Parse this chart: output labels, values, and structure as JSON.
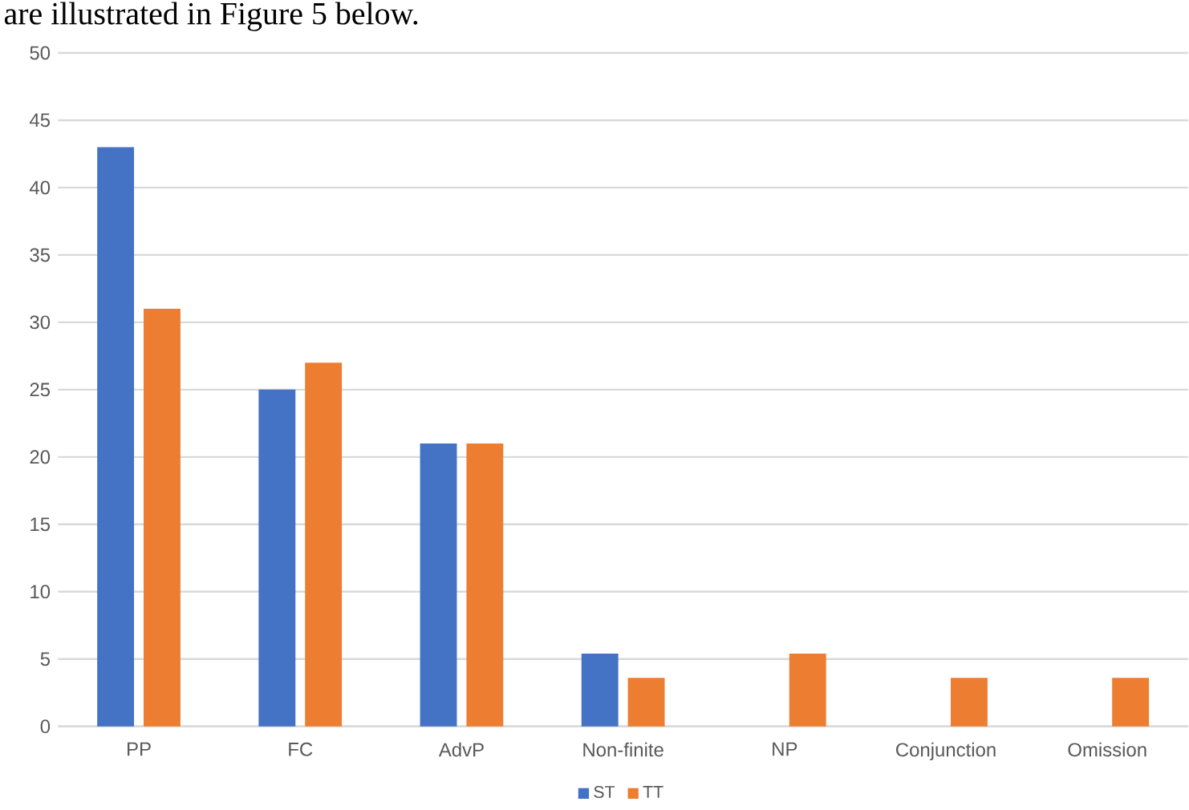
{
  "chart_data": {
    "type": "bar",
    "annotations": [
      "are illustrated in Figure 5 below."
    ],
    "categories": [
      "PP",
      "FC",
      "AdvP",
      "Non-finite",
      "NP",
      "Conjunction",
      "Omission"
    ],
    "series": [
      {
        "name": "ST",
        "color": "#4472c4",
        "values": [
          43,
          25,
          21,
          5.4,
          0,
          0,
          0
        ]
      },
      {
        "name": "TT",
        "color": "#ed7d31",
        "values": [
          31,
          27,
          21,
          3.6,
          5.4,
          3.6,
          3.6
        ]
      }
    ],
    "ylim": [
      0,
      50
    ],
    "yticks": [
      0,
      5,
      10,
      15,
      20,
      25,
      30,
      35,
      40,
      45,
      50
    ],
    "grid": "y",
    "legend": "bottom"
  }
}
